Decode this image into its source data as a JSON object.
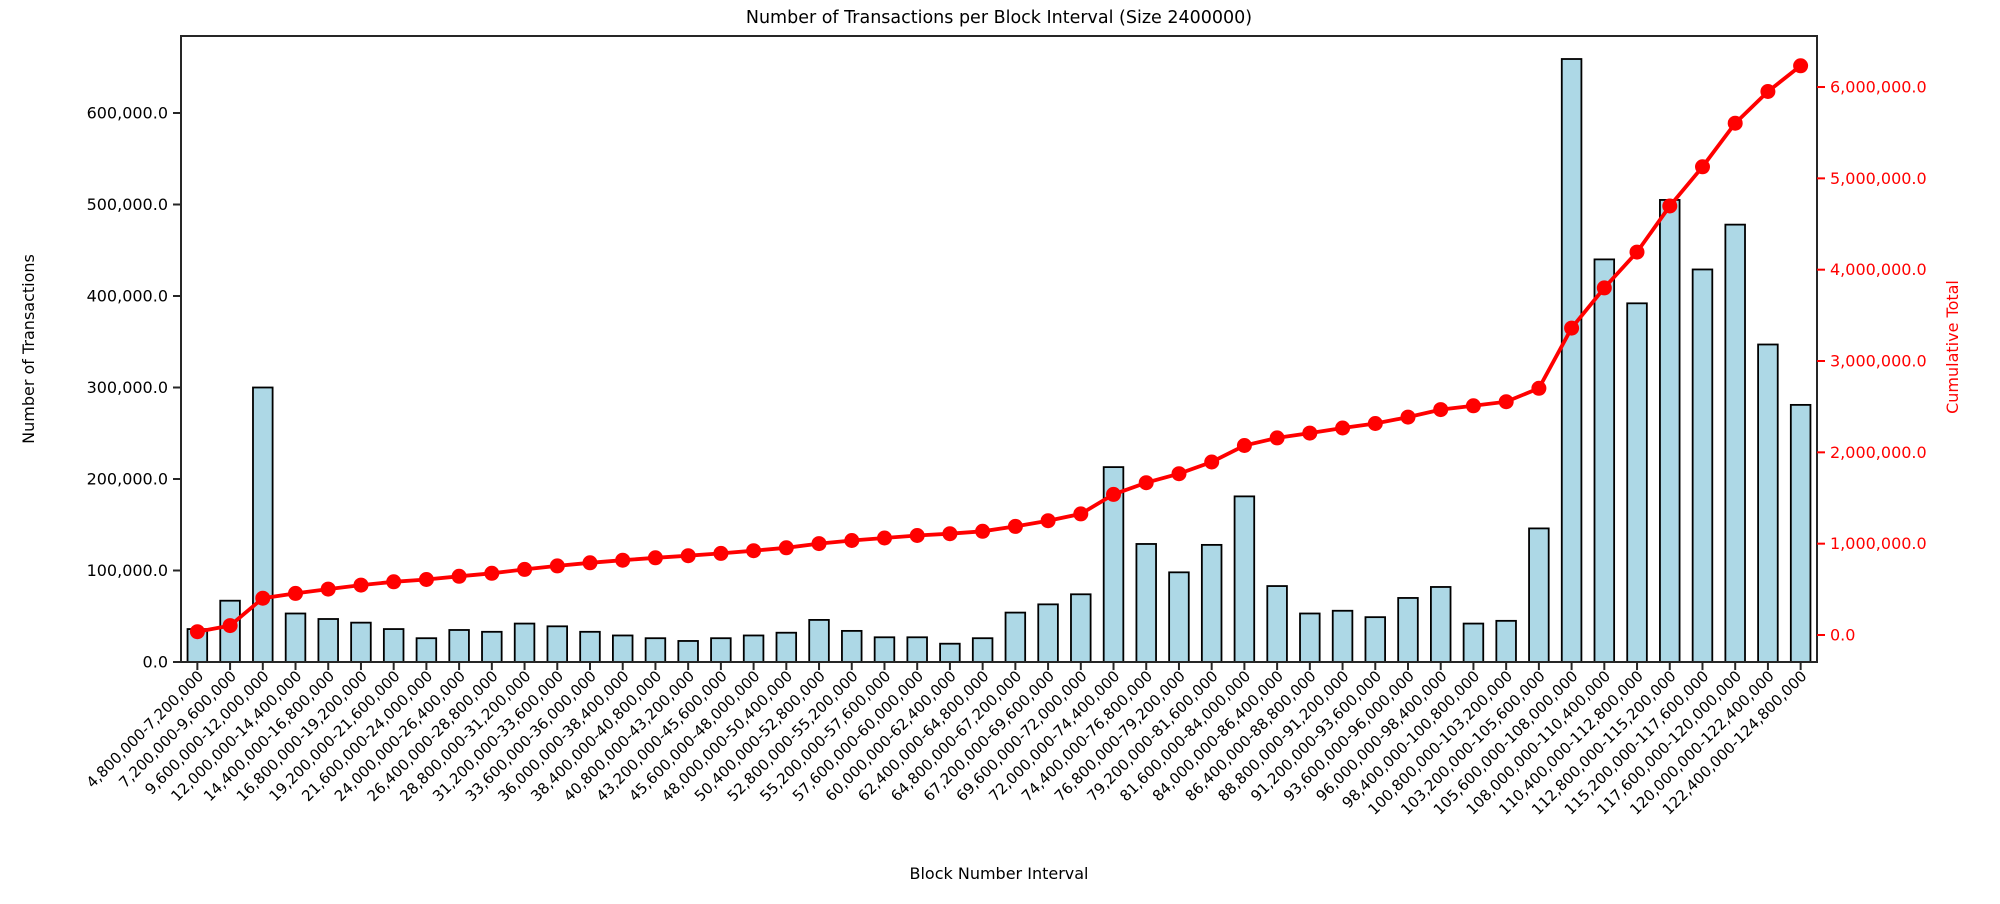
{
  "chart_data": {
    "type": "bar+line",
    "title": "Number of Transactions per Block Interval (Size 2400000)",
    "xlabel": "Block Number Interval",
    "ylabel_left": "Number of Transactions",
    "ylabel_right": "Cumulative Total",
    "interval_size": 2400000,
    "x_start": 4800000,
    "categories": [
      "4,800,000-7,200,000",
      "7,200,000-9,600,000",
      "9,600,000-12,000,000",
      "12,000,000-14,400,000",
      "14,400,000-16,800,000",
      "16,800,000-19,200,000",
      "19,200,000-21,600,000",
      "21,600,000-24,000,000",
      "24,000,000-26,400,000",
      "26,400,000-28,800,000",
      "28,800,000-31,200,000",
      "31,200,000-33,600,000",
      "33,600,000-36,000,000",
      "36,000,000-38,400,000",
      "38,400,000-40,800,000",
      "40,800,000-43,200,000",
      "43,200,000-45,600,000",
      "45,600,000-48,000,000",
      "48,000,000-50,400,000",
      "50,400,000-52,800,000",
      "52,800,000-55,200,000",
      "55,200,000-57,600,000",
      "57,600,000-60,000,000",
      "60,000,000-62,400,000",
      "62,400,000-64,800,000",
      "64,800,000-67,200,000",
      "67,200,000-69,600,000",
      "69,600,000-72,000,000",
      "72,000,000-74,400,000",
      "74,400,000-76,800,000",
      "76,800,000-79,200,000",
      "79,200,000-81,600,000",
      "81,600,000-84,000,000",
      "84,000,000-86,400,000",
      "86,400,000-88,800,000",
      "88,800,000-91,200,000",
      "91,200,000-93,600,000",
      "93,600,000-96,000,000",
      "96,000,000-98,400,000",
      "98,400,000-100,800,000",
      "100,800,000-103,200,000",
      "103,200,000-105,600,000",
      "105,600,000-108,000,000",
      "108,000,000-110,400,000",
      "110,400,000-112,800,000",
      "112,800,000-115,200,000",
      "115,200,000-117,600,000",
      "117,600,000-120,000,000",
      "120,000,000-122,400,000",
      "122,400,000-124,800,000"
    ],
    "series": [
      {
        "name": "Number of Transactions",
        "axis": "left",
        "type": "bar",
        "values": [
          36000,
          67000,
          300000,
          53000,
          47000,
          43000,
          36000,
          26000,
          35000,
          33000,
          42000,
          39000,
          33000,
          29000,
          26000,
          23000,
          26000,
          29000,
          32000,
          46000,
          34000,
          27000,
          27000,
          20000,
          26000,
          54000,
          63000,
          74000,
          213000,
          129000,
          98000,
          128000,
          181000,
          83000,
          53000,
          56000,
          49000,
          70000,
          82000,
          42000,
          45000,
          146000,
          659000,
          440000,
          392000,
          505000,
          429000,
          478000,
          347000,
          281000
        ]
      },
      {
        "name": "Cumulative Total",
        "axis": "right",
        "type": "line",
        "values": [
          36000,
          103000,
          403000,
          456000,
          503000,
          546000,
          582000,
          608000,
          643000,
          676000,
          718000,
          757000,
          790000,
          819000,
          845000,
          868000,
          894000,
          923000,
          955000,
          1001000,
          1035000,
          1062000,
          1089000,
          1109000,
          1135000,
          1189000,
          1252000,
          1326000,
          1539000,
          1668000,
          1766000,
          1894000,
          2075000,
          2158000,
          2211000,
          2267000,
          2316000,
          2386000,
          2468000,
          2510000,
          2555000,
          2701000,
          3360000,
          3800000,
          4192000,
          4697000,
          5126000,
          5604000,
          5951000,
          6232000
        ]
      }
    ],
    "left_axis": {
      "ticks": [
        0,
        100000,
        200000,
        300000,
        400000,
        500000,
        600000
      ],
      "tick_labels": [
        "0.0",
        "100,000.0",
        "200,000.0",
        "300,000.0",
        "400,000.0",
        "500,000.0",
        "600,000.0"
      ],
      "range": [
        0,
        684000
      ]
    },
    "right_axis": {
      "ticks": [
        0,
        1000000,
        2000000,
        3000000,
        4000000,
        5000000,
        6000000
      ],
      "tick_labels": [
        "0.0",
        "1,000,000.0",
        "2,000,000.0",
        "3,000,000.0",
        "4,000,000.0",
        "5,000,000.0",
        "6,000,000.0"
      ],
      "range": [
        -295000,
        6560000
      ]
    },
    "layout": {
      "grid": false,
      "legend": "none",
      "x_tick_rotation_deg": 45,
      "bar_width_fraction": 0.6
    },
    "colors": {
      "bar_fill": "#ADD8E6",
      "bar_edge": "#000000",
      "line": "#FF0000",
      "right_axis_text": "#FF0000",
      "text": "#000000",
      "spine": "#262626",
      "background": "#FFFFFF"
    }
  }
}
